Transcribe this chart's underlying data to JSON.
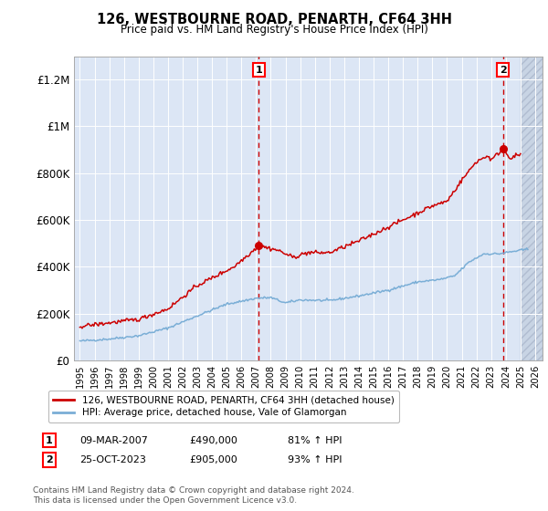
{
  "title": "126, WESTBOURNE ROAD, PENARTH, CF64 3HH",
  "subtitle": "Price paid vs. HM Land Registry's House Price Index (HPI)",
  "ylim": [
    0,
    1300000
  ],
  "yticks": [
    0,
    200000,
    400000,
    600000,
    800000,
    1000000,
    1200000
  ],
  "ytick_labels": [
    "£0",
    "£200K",
    "£400K",
    "£600K",
    "£800K",
    "£1M",
    "£1.2M"
  ],
  "sale1_date": "09-MAR-2007",
  "sale1_price": 490000,
  "sale1_pct": "81%",
  "sale1_year": 2007.19,
  "sale2_date": "25-OCT-2023",
  "sale2_price": 905000,
  "sale2_pct": "93%",
  "sale2_year": 2023.81,
  "legend_line1": "126, WESTBOURNE ROAD, PENARTH, CF64 3HH (detached house)",
  "legend_line2": "HPI: Average price, detached house, Vale of Glamorgan",
  "footnote": "Contains HM Land Registry data © Crown copyright and database right 2024.\nThis data is licensed under the Open Government Licence v3.0.",
  "line1_color": "#cc0000",
  "line2_color": "#7aaed6",
  "bg_color": "#dce6f5",
  "hatch_color": "#c8d4e4",
  "grid_color": "#ffffff",
  "marker_color": "#cc0000",
  "xlim_left": 1994.6,
  "xlim_right": 2026.5,
  "hatch_start": 2025.0
}
